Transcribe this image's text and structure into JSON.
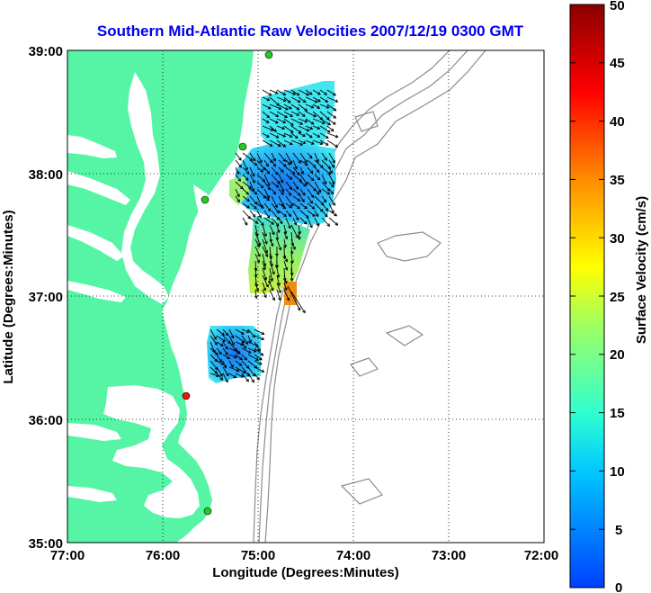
{
  "title": "Southern Mid-Atlantic Raw Velocities 2007/12/19 0300 GMT",
  "xlabel": "Longitude (Degrees:Minutes)",
  "ylabel": "Latitude (Degrees:Minutes)",
  "colorbar_label": "Surface Velocity (cm/s)",
  "colors": {
    "title": "#0000ee",
    "land": "#55f5a5",
    "ocean": "#ffffff",
    "bathymetry": "#8c8c8c",
    "grid": "#000000"
  },
  "chart_data": {
    "type": "heatmap",
    "x_ticks": [
      "77:00",
      "76:00",
      "75:00",
      "74:00",
      "73:00",
      "72:00"
    ],
    "y_ticks": [
      "39:00",
      "38:00",
      "37:00",
      "36:00",
      "35:00"
    ],
    "xlim_deg_west": [
      77,
      72
    ],
    "ylim_deg_north": [
      35,
      39
    ],
    "grid": true,
    "colorbar": {
      "ticks": [
        "50",
        "45",
        "40",
        "35",
        "30",
        "25",
        "20",
        "15",
        "10",
        "5",
        "0"
      ],
      "range": [
        0,
        50
      ],
      "colormap": "jet"
    },
    "stations": [
      {
        "color": "green",
        "lon": -74.87,
        "lat": 39.0
      },
      {
        "color": "green",
        "lon": -75.1,
        "lat": 38.24
      },
      {
        "color": "green",
        "lon": -75.49,
        "lat": 37.79
      },
      {
        "color": "red",
        "lon": -75.67,
        "lat": 36.18
      },
      {
        "color": "green",
        "lon": -75.47,
        "lat": 35.27
      }
    ],
    "velocity_regions": [
      {
        "lon": [
          -74.95,
          -74.2
        ],
        "lat": [
          38.2,
          38.95
        ],
        "speed_cm_s": 11
      },
      {
        "lon": [
          -75.2,
          -74.25
        ],
        "lat": [
          37.6,
          38.3
        ],
        "speed_cm_s": 7
      },
      {
        "lon": [
          -74.9,
          -74.5
        ],
        "lat": [
          37.0,
          37.6
        ],
        "speed_cm_s": 17
      },
      {
        "lon": [
          -74.7,
          -74.55
        ],
        "lat": [
          36.92,
          37.12
        ],
        "speed_cm_s": 34
      },
      {
        "lon": [
          -75.5,
          -74.8
        ],
        "lat": [
          36.25,
          36.73
        ],
        "speed_cm_s": 8
      }
    ]
  }
}
